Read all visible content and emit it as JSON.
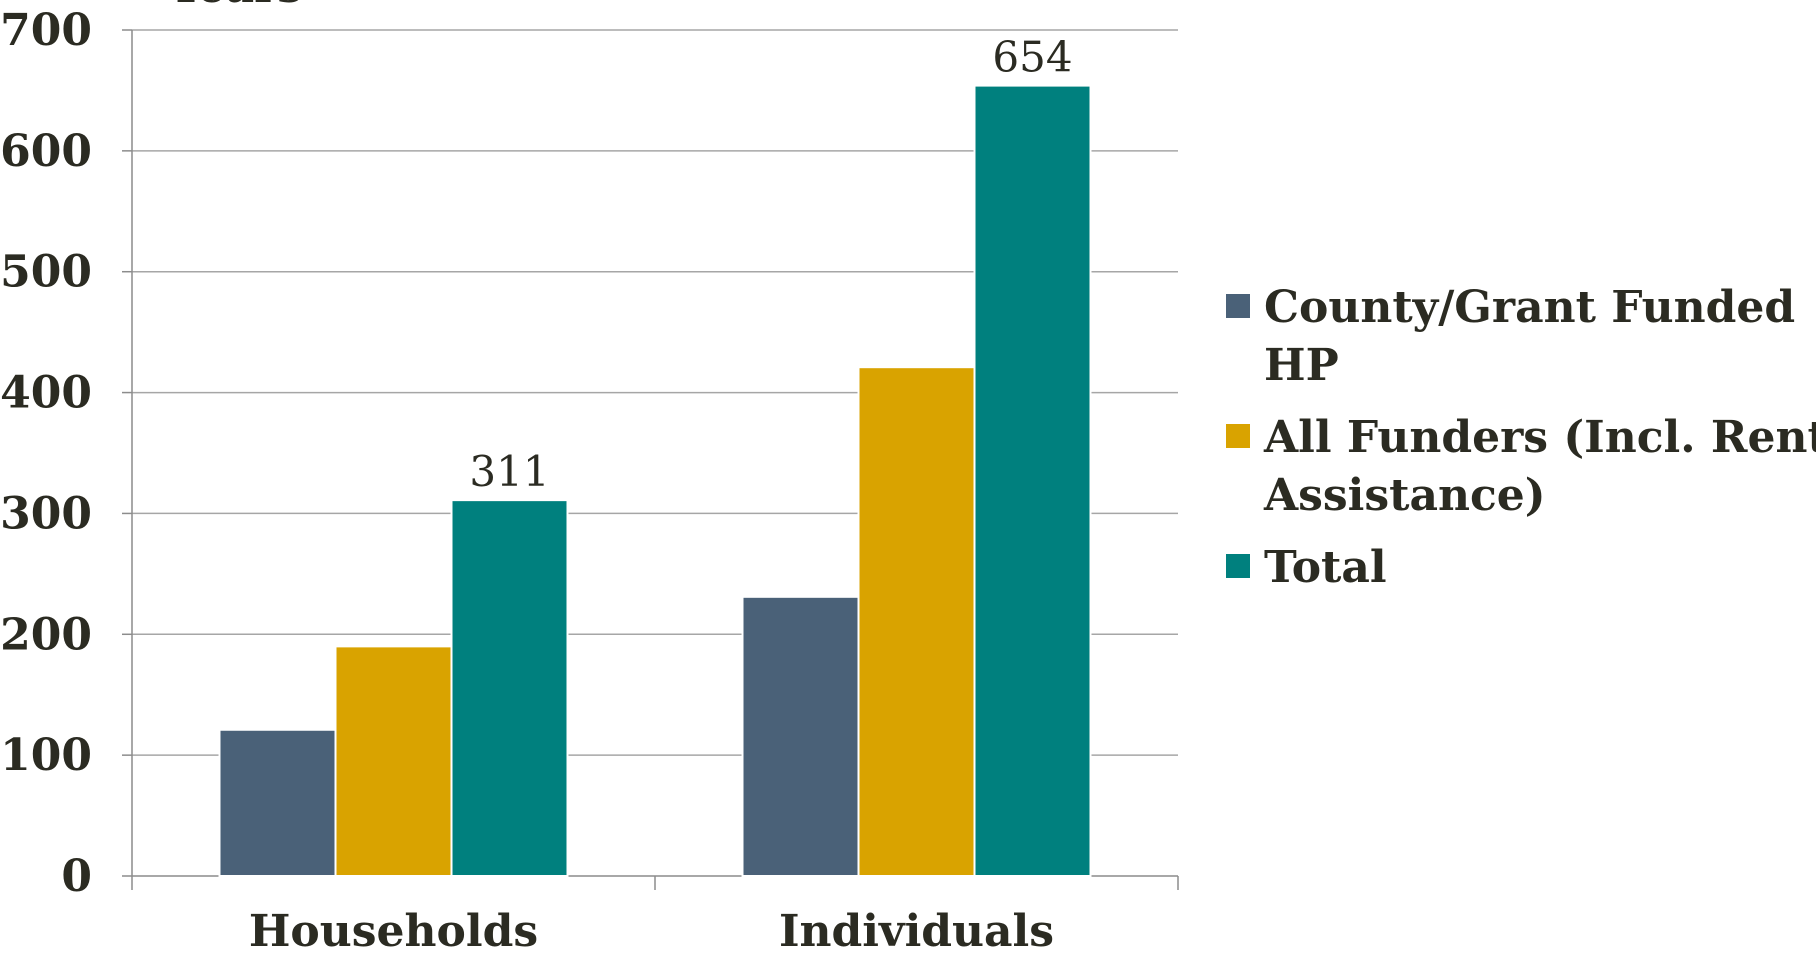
{
  "chart_data": {
    "type": "bar",
    "categories": [
      "Households",
      "Individuals"
    ],
    "series": [
      {
        "name": "County/Grant Funded HP",
        "values": [
          121,
          231
        ],
        "color": "#4a6178"
      },
      {
        "name": "All Funders (Incl. Rental Assistance)",
        "values": [
          190,
          421
        ],
        "color": "#d9a300"
      },
      {
        "name": "Total",
        "values": [
          311,
          654
        ],
        "color": "#00807e"
      }
    ],
    "data_labels": {
      "Total": [
        "311",
        "654"
      ]
    },
    "partial_top_text": "Years",
    "ylim": [
      0,
      700
    ],
    "yticks": [
      0,
      100,
      200,
      300,
      400,
      500,
      600,
      700
    ],
    "grid": true,
    "legend": "right",
    "legend_lines": [
      [
        "County/Grant Funded",
        "HP"
      ],
      [
        "All Funders (Incl. Rental",
        "Assistance)"
      ],
      [
        "Total"
      ]
    ]
  }
}
